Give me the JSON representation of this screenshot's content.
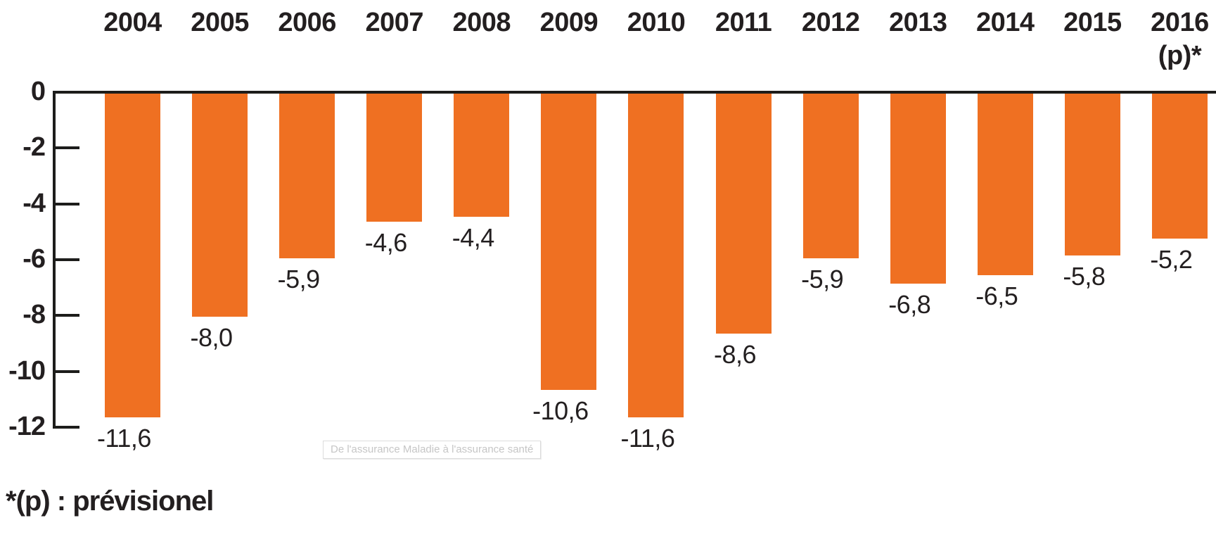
{
  "chart_data": {
    "type": "bar",
    "title": "",
    "xlabel": "",
    "ylabel": "",
    "categories": [
      "2004",
      "2005",
      "2006",
      "2007",
      "2008",
      "2009",
      "2010",
      "2011",
      "2012",
      "2013",
      "2014",
      "2015",
      "2016"
    ],
    "category_sublabels": [
      "",
      "",
      "",
      "",
      "",
      "",
      "",
      "",
      "",
      "",
      "",
      "",
      "(p)*"
    ],
    "values": [
      -11.6,
      -8.0,
      -5.9,
      -4.6,
      -4.4,
      -10.6,
      -11.6,
      -8.6,
      -5.9,
      -6.8,
      -6.5,
      -5.8,
      -5.2
    ],
    "value_labels": [
      "-11,6",
      "-8,0",
      "-5,9",
      "-4,6",
      "-4,4",
      "-10,6",
      "-11,6",
      "-8,6",
      "-5,9",
      "-6,8",
      "-6,5",
      "-5,8",
      "-5,2"
    ],
    "y_ticks": [
      0,
      -2,
      -4,
      -6,
      -8,
      -10,
      -12
    ],
    "y_tick_labels": [
      "0",
      "-2",
      "-4",
      "-6",
      "-8",
      "-10",
      "-12"
    ],
    "ylim": [
      -12,
      0
    ],
    "grid": false,
    "legend": false,
    "bar_color": "#ef7022",
    "axis_color": "#1d1d1b",
    "text_color": "#231f20"
  },
  "footnote": {
    "text": "*(p) : prévisionel"
  },
  "tooltip": {
    "text": "De l'assurance Maladie à l'assurance santé"
  }
}
